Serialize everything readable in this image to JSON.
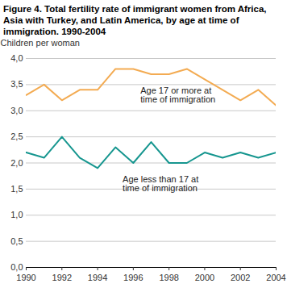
{
  "chart_data": {
    "type": "line",
    "title": "Figure 4. Total fertility rate of immigrant women from Africa, Asia with Turkey, and Latin America, by age at time of immigration. 1990-2004",
    "y_label": "Children per woman",
    "x": [
      1990,
      1991,
      1992,
      1993,
      1994,
      1995,
      1996,
      1997,
      1998,
      1999,
      2000,
      2001,
      2002,
      2003,
      2004
    ],
    "series": [
      {
        "name": "Age 17 or more at time of immigration",
        "color": "#f3ab52",
        "values": [
          3.3,
          3.5,
          3.2,
          3.4,
          3.4,
          3.8,
          3.8,
          3.7,
          3.7,
          3.8,
          3.6,
          3.4,
          3.2,
          3.4,
          3.1
        ]
      },
      {
        "name": "Age less than 17 at time of immigration",
        "color": "#16968f",
        "values": [
          2.2,
          2.1,
          2.5,
          2.1,
          1.9,
          2.3,
          2.0,
          2.4,
          2.0,
          2.0,
          2.2,
          2.1,
          2.2,
          2.1,
          2.2
        ]
      }
    ],
    "annotations": [
      {
        "text": "Age 17 or more at time of immigration",
        "x": 1996.4,
        "y": 3.45
      },
      {
        "text": "Age less than 17 at time of immigration",
        "x": 1995.4,
        "y": 1.75
      }
    ],
    "xlim": [
      1990,
      2004
    ],
    "xticks": [
      1990,
      1992,
      1994,
      1996,
      1998,
      2000,
      2002,
      2004
    ],
    "ylim": [
      0,
      4
    ],
    "yticks": [
      {
        "value": 0,
        "label": "0,0"
      },
      {
        "value": 0.5,
        "label": "0,5"
      },
      {
        "value": 1,
        "label": "1,0"
      },
      {
        "value": 1.5,
        "label": "1,5"
      },
      {
        "value": 2,
        "label": "2,0"
      },
      {
        "value": 2.5,
        "label": "2,5"
      },
      {
        "value": 3,
        "label": "3,0"
      },
      {
        "value": 3.5,
        "label": "3,5"
      },
      {
        "value": 4,
        "label": "4,0"
      }
    ],
    "grid": true
  }
}
